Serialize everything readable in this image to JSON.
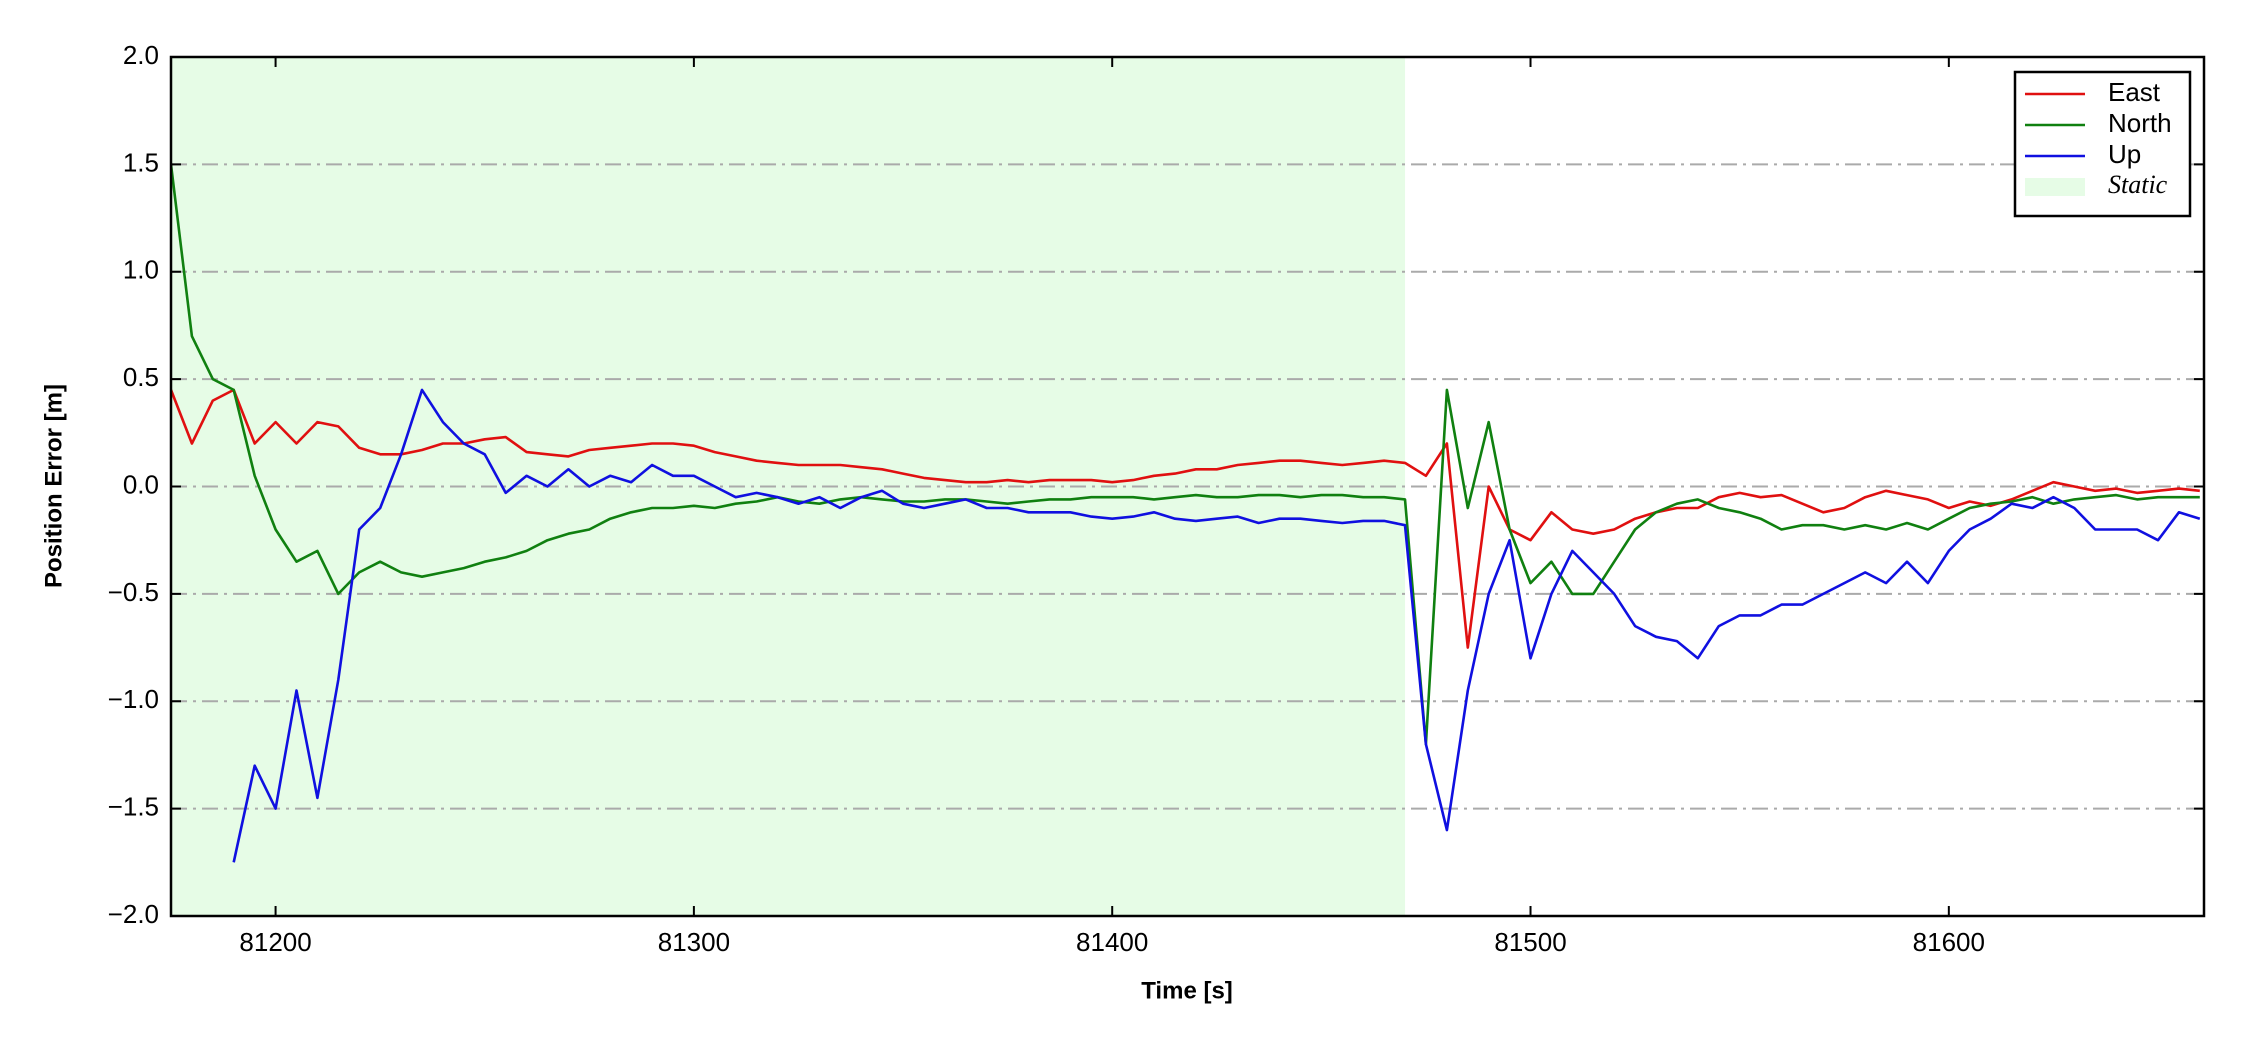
{
  "chart_data": {
    "type": "line",
    "xlabel": "Time [s]",
    "ylabel": "Position Error [m]",
    "xlim": [
      81175,
      81661
    ],
    "ylim": [
      -2,
      2
    ],
    "xticks": [
      81200,
      81300,
      81400,
      81500,
      81600
    ],
    "yticks": [
      {
        "value": -2,
        "label": "−2.0"
      },
      {
        "value": -1.5,
        "label": "−1.5"
      },
      {
        "value": -1,
        "label": "−1.0"
      },
      {
        "value": -0.5,
        "label": "−0.5"
      },
      {
        "value": 0,
        "label": "0.0"
      },
      0.5,
      {
        "value": 1,
        "label": "1.0"
      },
      1.5,
      {
        "value": 2,
        "label": "2.0"
      }
    ],
    "grid": true,
    "legend": "upper right",
    "shade": {
      "name": "Static",
      "color": "#e6fce6",
      "xrange": [
        81175,
        81470
      ]
    },
    "x": [
      81175,
      81180,
      81185,
      81190,
      81195,
      81200,
      81205,
      81210,
      81215,
      81220,
      81225,
      81230,
      81235,
      81240,
      81245,
      81250,
      81255,
      81260,
      81265,
      81270,
      81275,
      81280,
      81285,
      81290,
      81295,
      81300,
      81305,
      81310,
      81315,
      81320,
      81325,
      81330,
      81335,
      81340,
      81345,
      81350,
      81355,
      81360,
      81365,
      81370,
      81375,
      81380,
      81385,
      81390,
      81395,
      81400,
      81405,
      81410,
      81415,
      81420,
      81425,
      81430,
      81435,
      81440,
      81445,
      81450,
      81455,
      81460,
      81465,
      81470,
      81475,
      81480,
      81485,
      81490,
      81495,
      81500,
      81505,
      81510,
      81515,
      81520,
      81525,
      81530,
      81535,
      81540,
      81545,
      81550,
      81555,
      81560,
      81565,
      81570,
      81575,
      81580,
      81585,
      81590,
      81595,
      81600,
      81605,
      81610,
      81615,
      81620,
      81625,
      81630,
      81635,
      81640,
      81645,
      81650,
      81655,
      81660
    ],
    "series": [
      {
        "name": "East",
        "color": "#e01010",
        "values": [
          0.45,
          0.2,
          0.4,
          0.45,
          0.2,
          0.3,
          0.2,
          0.3,
          0.28,
          0.18,
          0.15,
          0.15,
          0.17,
          0.2,
          0.2,
          0.22,
          0.23,
          0.16,
          0.15,
          0.14,
          0.17,
          0.18,
          0.19,
          0.2,
          0.2,
          0.19,
          0.16,
          0.14,
          0.12,
          0.11,
          0.1,
          0.1,
          0.1,
          0.09,
          0.08,
          0.06,
          0.04,
          0.03,
          0.02,
          0.02,
          0.03,
          0.02,
          0.03,
          0.03,
          0.03,
          0.02,
          0.03,
          0.05,
          0.06,
          0.08,
          0.08,
          0.1,
          0.11,
          0.12,
          0.12,
          0.11,
          0.1,
          0.11,
          0.12,
          0.11,
          0.05,
          0.2,
          -0.75,
          0.0,
          -0.2,
          -0.25,
          -0.12,
          -0.2,
          -0.22,
          -0.2,
          -0.15,
          -0.12,
          -0.1,
          -0.1,
          -0.05,
          -0.03,
          -0.05,
          -0.04,
          -0.08,
          -0.12,
          -0.1,
          -0.05,
          -0.02,
          -0.04,
          -0.06,
          -0.1,
          -0.07,
          -0.09,
          -0.06,
          -0.02,
          0.02,
          0.0,
          -0.02,
          -0.01,
          -0.03,
          -0.02,
          -0.01,
          -0.02
        ]
      },
      {
        "name": "North",
        "color": "#108010",
        "values": [
          1.5,
          0.7,
          0.5,
          0.45,
          0.05,
          -0.2,
          -0.35,
          -0.3,
          -0.5,
          -0.4,
          -0.35,
          -0.4,
          -0.42,
          -0.4,
          -0.38,
          -0.35,
          -0.33,
          -0.3,
          -0.25,
          -0.22,
          -0.2,
          -0.15,
          -0.12,
          -0.1,
          -0.1,
          -0.09,
          -0.1,
          -0.08,
          -0.07,
          -0.05,
          -0.07,
          -0.08,
          -0.06,
          -0.05,
          -0.06,
          -0.07,
          -0.07,
          -0.06,
          -0.06,
          -0.07,
          -0.08,
          -0.07,
          -0.06,
          -0.06,
          -0.05,
          -0.05,
          -0.05,
          -0.06,
          -0.05,
          -0.04,
          -0.05,
          -0.05,
          -0.04,
          -0.04,
          -0.05,
          -0.04,
          -0.04,
          -0.05,
          -0.05,
          -0.06,
          -1.2,
          0.45,
          -0.1,
          0.3,
          -0.2,
          -0.45,
          -0.35,
          -0.5,
          -0.5,
          -0.35,
          -0.2,
          -0.12,
          -0.08,
          -0.06,
          -0.1,
          -0.12,
          -0.15,
          -0.2,
          -0.18,
          -0.18,
          -0.2,
          -0.18,
          -0.2,
          -0.17,
          -0.2,
          -0.15,
          -0.1,
          -0.08,
          -0.07,
          -0.05,
          -0.08,
          -0.06,
          -0.05,
          -0.04,
          -0.06,
          -0.05,
          -0.05,
          -0.05
        ]
      },
      {
        "name": "Up",
        "color": "#1010e0",
        "values": [
          null,
          null,
          null,
          -1.75,
          -1.3,
          -1.5,
          -0.95,
          -1.45,
          -0.9,
          -0.2,
          -0.1,
          0.15,
          0.45,
          0.3,
          0.2,
          0.15,
          -0.03,
          0.05,
          0.0,
          0.08,
          0.0,
          0.05,
          0.02,
          0.1,
          0.05,
          0.05,
          0.0,
          -0.05,
          -0.03,
          -0.05,
          -0.08,
          -0.05,
          -0.1,
          -0.05,
          -0.02,
          -0.08,
          -0.1,
          -0.08,
          -0.06,
          -0.1,
          -0.1,
          -0.12,
          -0.12,
          -0.12,
          -0.14,
          -0.15,
          -0.14,
          -0.12,
          -0.15,
          -0.16,
          -0.15,
          -0.14,
          -0.17,
          -0.15,
          -0.15,
          -0.16,
          -0.17,
          -0.16,
          -0.16,
          -0.18,
          -1.2,
          -1.6,
          -0.95,
          -0.5,
          -0.25,
          -0.8,
          -0.5,
          -0.3,
          -0.4,
          -0.5,
          -0.65,
          -0.7,
          -0.72,
          -0.8,
          -0.65,
          -0.6,
          -0.6,
          -0.55,
          -0.55,
          -0.5,
          -0.45,
          -0.4,
          -0.45,
          -0.35,
          -0.45,
          -0.3,
          -0.2,
          -0.15,
          -0.08,
          -0.1,
          -0.05,
          -0.1,
          -0.2,
          -0.2,
          -0.2,
          -0.25,
          -0.12,
          -0.15
        ]
      }
    ]
  }
}
